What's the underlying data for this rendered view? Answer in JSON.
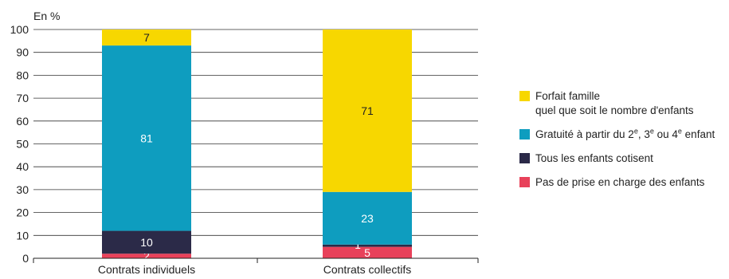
{
  "chart_data": {
    "type": "bar",
    "stacked": true,
    "unit_label": "En %",
    "categories": [
      "Contrats individuels",
      "Contrats collectifs"
    ],
    "ylim": [
      0,
      100
    ],
    "yticks": [
      0,
      10,
      20,
      30,
      40,
      50,
      60,
      70,
      80,
      90,
      100
    ],
    "grid": true,
    "legend_position": "right",
    "series": [
      {
        "name": "Pas de prise en charge des enfants",
        "color": "#e8415a",
        "label_color": "#ffffff",
        "values": [
          2,
          5
        ]
      },
      {
        "name": "Tous les enfants cotisent",
        "color": "#2b2a48",
        "label_color": "#ffffff",
        "values": [
          10,
          1
        ]
      },
      {
        "name": "Gratuité à partir du 2e, 3e ou 4e enfant",
        "color": "#0e9dbf",
        "label_color": "#ffffff",
        "values": [
          81,
          23
        ]
      },
      {
        "name": "Forfait famille quel que soit le nombre d'enfants",
        "color": "#f7d700",
        "label_color": "#222222",
        "values": [
          7,
          71
        ]
      }
    ]
  },
  "legend": {
    "items": [
      {
        "color": "#f7d700",
        "line1": "Forfait famille",
        "line2": "quel que soit le nombre d'enfants"
      },
      {
        "color": "#0e9dbf",
        "pre": "Gratuité à partir du 2",
        "sup1": "e",
        "mid1": ", 3",
        "sup2": "e",
        "mid2": " ou 4",
        "sup3": "e",
        "post": " enfant"
      },
      {
        "color": "#2b2a48",
        "line1": "Tous les enfants cotisent"
      },
      {
        "color": "#e8415a",
        "line1": "Pas de prise en charge des enfants"
      }
    ]
  }
}
